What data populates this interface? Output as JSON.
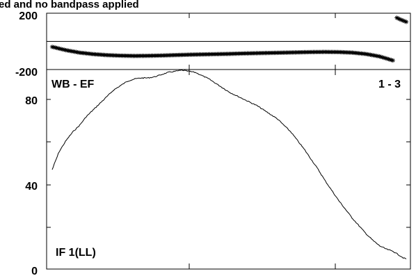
{
  "page_title": "ed and no bandpass applied",
  "chart_data": [
    {
      "type": "scatter",
      "name_label": "phase-panel",
      "yticks": [
        {
          "value": 200,
          "label": "200"
        },
        {
          "value": -200,
          "label": "-200"
        }
      ],
      "ylim": [
        -200,
        200
      ],
      "xlim": [
        0,
        520
      ],
      "reference_line": 0,
      "series": [
        {
          "marker": "asterisk",
          "x": [
            0,
            20,
            40,
            60,
            80,
            100,
            120,
            140,
            160,
            180,
            200,
            220,
            240,
            260,
            280,
            300,
            320,
            340,
            360,
            380,
            400,
            420,
            440,
            460,
            480,
            500,
            505,
            510,
            515,
            520
          ],
          "y": [
            -40,
            -64,
            -82,
            -93,
            -100,
            -104,
            -106,
            -105,
            -103,
            -100,
            -97,
            -95,
            -93,
            -91,
            -88,
            -86,
            -84,
            -82,
            -80,
            -78,
            -77,
            -78,
            -82,
            -92,
            -110,
            -140,
            172,
            160,
            150,
            140
          ]
        }
      ]
    },
    {
      "type": "line",
      "baseline_label": "WB - EF",
      "baseline_pair": "1 - 3",
      "if_label": "IF 1(LL)",
      "yticks": [
        {
          "value": 80,
          "label": "80"
        },
        {
          "value": 40,
          "label": "40"
        },
        {
          "value": 0,
          "label": "0"
        }
      ],
      "ylim": [
        0,
        90
      ],
      "xlim": [
        0,
        520
      ],
      "series": [
        {
          "x": [
            0,
            10,
            20,
            30,
            40,
            50,
            60,
            70,
            80,
            90,
            100,
            110,
            120,
            130,
            140,
            150,
            160,
            170,
            180,
            190,
            200,
            210,
            220,
            230,
            240,
            250,
            260,
            270,
            280,
            290,
            300,
            310,
            320,
            330,
            340,
            350,
            360,
            370,
            380,
            390,
            400,
            410,
            420,
            430,
            440,
            450,
            460,
            470,
            480,
            490,
            500,
            505,
            510,
            515,
            520
          ],
          "y": [
            45,
            53,
            58,
            62,
            65,
            69,
            72,
            75,
            78,
            81,
            83,
            85,
            86,
            86.5,
            86.5,
            87,
            88,
            89,
            89.5,
            90,
            89.5,
            89,
            87.5,
            86,
            84,
            82,
            80,
            78.5,
            77,
            75.5,
            74,
            72,
            70,
            68,
            65,
            62,
            58,
            54,
            49.5,
            45,
            40,
            35.5,
            31,
            27,
            23,
            19.5,
            16,
            13,
            10.5,
            9,
            8,
            7,
            6,
            5,
            4.5
          ]
        }
      ]
    }
  ]
}
